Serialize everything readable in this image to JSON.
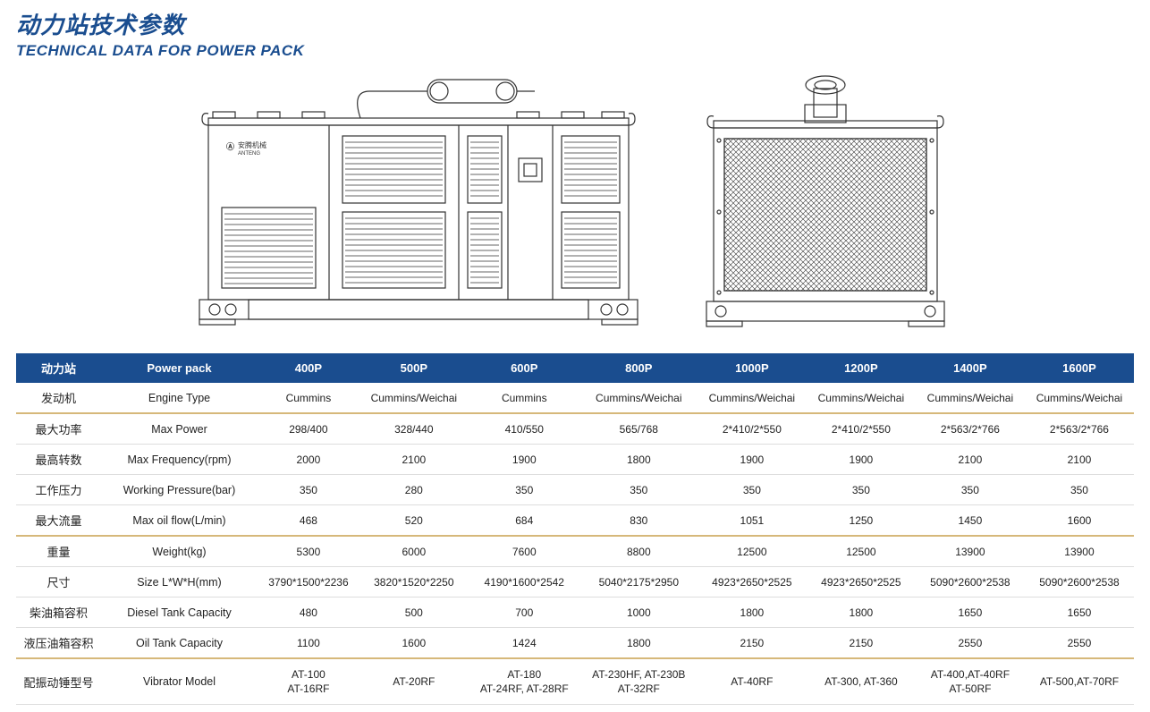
{
  "title": {
    "cn": "动力站技术参数",
    "en": "TECHNICAL DATA FOR POWER PACK"
  },
  "logo_text": "安腾机械",
  "logo_sub": "ANTENG",
  "table": {
    "header_cn": "动力站",
    "header_en": "Power pack",
    "models": [
      "400P",
      "500P",
      "600P",
      "800P",
      "1000P",
      "1200P",
      "1400P",
      "1600P"
    ],
    "rowgroups": [
      {
        "rows": [
          {
            "cn": "发动机",
            "en": "Engine Type",
            "vals": [
              "Cummins",
              "Cummins/Weichai",
              "Cummins",
              "Cummins/Weichai",
              "Cummins/Weichai",
              "Cummins/Weichai",
              "Cummins/Weichai",
              "Cummins/Weichai"
            ]
          }
        ]
      },
      {
        "rows": [
          {
            "cn": "最大功率",
            "en": "Max Power",
            "vals": [
              "298/400",
              "328/440",
              "410/550",
              "565/768",
              "2*410/2*550",
              "2*410/2*550",
              "2*563/2*766",
              "2*563/2*766"
            ]
          },
          {
            "cn": "最高转数",
            "en": "Max Frequency(rpm)",
            "vals": [
              "2000",
              "2100",
              "1900",
              "1800",
              "1900",
              "1900",
              "2100",
              "2100"
            ]
          },
          {
            "cn": "工作压力",
            "en": "Working Pressure(bar)",
            "vals": [
              "350",
              "280",
              "350",
              "350",
              "350",
              "350",
              "350",
              "350"
            ]
          },
          {
            "cn": "最大流量",
            "en": "Max oil flow(L/min)",
            "vals": [
              "468",
              "520",
              "684",
              "830",
              "1051",
              "1250",
              "1450",
              "1600"
            ]
          }
        ]
      },
      {
        "rows": [
          {
            "cn": "重量",
            "en": "Weight(kg)",
            "vals": [
              "5300",
              "6000",
              "7600",
              "8800",
              "12500",
              "12500",
              "13900",
              "13900"
            ]
          },
          {
            "cn": "尺寸",
            "en": "Size L*W*H(mm)",
            "vals": [
              "3790*1500*2236",
              "3820*1520*2250",
              "4190*1600*2542",
              "5040*2175*2950",
              "4923*2650*2525",
              "4923*2650*2525",
              "5090*2600*2538",
              "5090*2600*2538"
            ]
          },
          {
            "cn": "柴油箱容积",
            "en": "Diesel Tank Capacity",
            "vals": [
              "480",
              "500",
              "700",
              "1000",
              "1800",
              "1800",
              "1650",
              "1650"
            ]
          },
          {
            "cn": "液压油箱容积",
            "en": "Oil Tank Capacity",
            "vals": [
              "1100",
              "1600",
              "1424",
              "1800",
              "2150",
              "2150",
              "2550",
              "2550"
            ]
          }
        ]
      },
      {
        "rows": [
          {
            "cn": "配振动锤型号",
            "en": "Vibrator Model",
            "vals": [
              "AT-100\nAT-16RF",
              "AT-20RF",
              "AT-180\nAT-24RF, AT-28RF",
              "AT-230HF, AT-230B\nAT-32RF",
              "AT-40RF",
              "AT-300, AT-360",
              "AT-400,AT-40RF\nAT-50RF",
              "AT-500,AT-70RF"
            ]
          }
        ]
      }
    ]
  },
  "colors": {
    "brand": "#1a4d8f",
    "gold": "#d6b87a",
    "thin": "#dddddd"
  }
}
